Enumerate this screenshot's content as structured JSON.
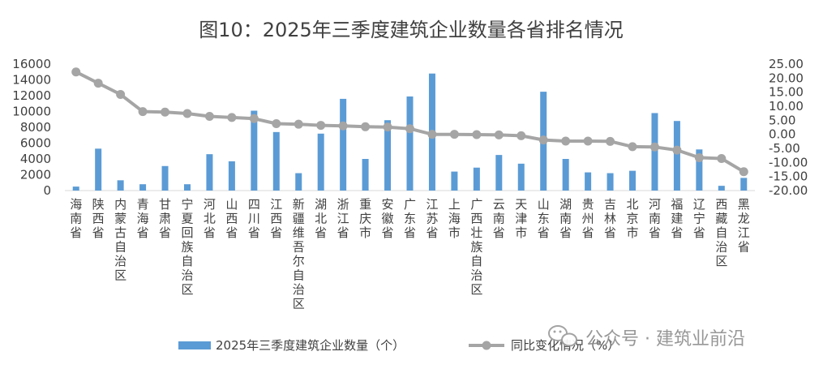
{
  "chart_data": {
    "type": "bar+line",
    "title": "图10：2025年三季度建筑企业数量各省排名情况",
    "categories": [
      "海南省",
      "陕西省",
      "内蒙古自治区",
      "青海省",
      "甘肃省",
      "宁夏回族自治区",
      "河北省",
      "山西省",
      "四川省",
      "江西省",
      "新疆维吾尔自治区",
      "湖北省",
      "浙江省",
      "重庆市",
      "安徽省",
      "广东省",
      "江苏省",
      "上海市",
      "广西壮族自治区",
      "云南省",
      "天津市",
      "山东省",
      "湖南省",
      "贵州省",
      "吉林省",
      "北京市",
      "河南省",
      "福建省",
      "辽宁省",
      "西藏自治区",
      "黑龙江省"
    ],
    "series": [
      {
        "name": "2025年三季度建筑企业数量（个）",
        "type": "bar",
        "axis": "left",
        "color": "#5b9bd5",
        "values": [
          500,
          5300,
          1300,
          800,
          3100,
          800,
          4600,
          3700,
          10100,
          7400,
          2200,
          7200,
          11600,
          4000,
          8900,
          11900,
          14800,
          2400,
          2900,
          4500,
          3400,
          12500,
          4000,
          2300,
          2200,
          2500,
          9800,
          8800,
          5200,
          600,
          1600
        ]
      },
      {
        "name": "同比变化情况（%）",
        "type": "line",
        "axis": "right",
        "color": "#a5a5a5",
        "values": [
          22.2,
          18.2,
          14.2,
          8.1,
          7.9,
          7.4,
          6.4,
          6.0,
          5.6,
          3.8,
          3.6,
          3.2,
          3.0,
          2.7,
          2.6,
          2.0,
          0.0,
          0.0,
          -0.1,
          -0.2,
          -0.5,
          -2.0,
          -2.4,
          -2.4,
          -2.5,
          -4.4,
          -4.5,
          -5.6,
          -8.3,
          -8.6,
          -13.3
        ]
      }
    ],
    "y_left": {
      "min": 0,
      "max": 16000,
      "step": 2000,
      "ticks": [
        "0",
        "2000",
        "4000",
        "6000",
        "8000",
        "10000",
        "12000",
        "14000",
        "16000"
      ]
    },
    "y_right": {
      "min": -20,
      "max": 25,
      "step": 5,
      "ticks": [
        "-20.00",
        "-15.00",
        "-10.00",
        "-5.00",
        "0.00",
        "5.00",
        "10.00",
        "15.00",
        "20.00",
        "25.00"
      ]
    },
    "grid": false,
    "legend_position": "bottom"
  },
  "watermark": {
    "text": "公众号 · 建筑业前沿",
    "icon": "wechat-icon"
  }
}
